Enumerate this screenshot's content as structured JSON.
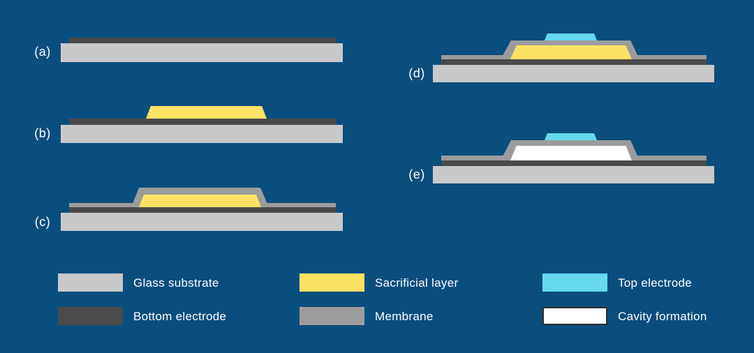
{
  "colors": {
    "bg": "#0a4e7e",
    "glass": "#c9c9c9",
    "electrode": "#4a4a4a",
    "membrane": "#9c9c9c",
    "sacrificial": "#fbe263",
    "top_electrode": "#65d9ee",
    "cavity": "#ffffff",
    "cavity_border": "#2e2e2e",
    "text": "#ffffff"
  },
  "panels": [
    {
      "id": "a",
      "label": "(a)",
      "layers": [
        "bottom electrode",
        "glass substrate"
      ]
    },
    {
      "id": "b",
      "label": "(b)",
      "layers": [
        "sacrificial layer",
        "bottom electrode",
        "glass substrate"
      ]
    },
    {
      "id": "c",
      "label": "(c)",
      "layers": [
        "membrane",
        "sacrificial layer",
        "bottom electrode",
        "glass substrate"
      ]
    },
    {
      "id": "d",
      "label": "(d)",
      "layers": [
        "top electrode",
        "membrane",
        "sacrificial layer",
        "bottom electrode",
        "glass substrate"
      ]
    },
    {
      "id": "e",
      "label": "(e)",
      "layers": [
        "top electrode",
        "membrane",
        "cavity",
        "bottom electrode",
        "glass substrate"
      ]
    }
  ],
  "legend": {
    "items": [
      {
        "label": "Glass substrate",
        "color": "#c9c9c9"
      },
      {
        "label": "Bottom electrode",
        "color": "#4a4a4a"
      },
      {
        "label": "Sacrificial layer",
        "color": "#fbe263"
      },
      {
        "label": "Membrane",
        "color": "#9c9c9c"
      },
      {
        "label": "Top electrode",
        "color": "#65d9ee"
      },
      {
        "label": "Cavity formation",
        "color": "#ffffff"
      }
    ]
  }
}
